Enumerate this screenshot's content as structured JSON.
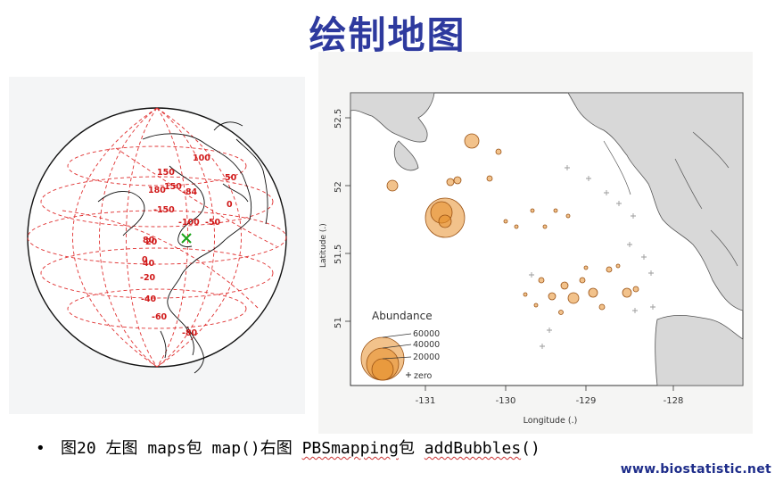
{
  "slide": {
    "title": "绘制地图"
  },
  "left_map": {
    "lat_labels": [
      "80",
      "60",
      "40",
      "20",
      "0",
      "-20",
      "-40",
      "-60",
      "-80"
    ],
    "lon_labels": [
      "150",
      "180",
      "-150",
      "150",
      "-100",
      "-84",
      "100",
      "50",
      "0",
      "-50"
    ],
    "grid_color": "#e03030",
    "marker": "x"
  },
  "right_map": {
    "y_label": "Latitude (.)",
    "x_label": "Longitude (.)",
    "y_ticks": [
      "52.5",
      "52",
      "51.5",
      "51"
    ],
    "x_ticks": [
      "-131",
      "-130",
      "-129",
      "-128"
    ],
    "legend": {
      "title": "Abundance",
      "entries": [
        "60000",
        "40000",
        "20000"
      ],
      "zero_label": "zero"
    },
    "bubble_color": "#e8902c",
    "land_color": "#d8d8d8"
  },
  "caption": {
    "bullet": "•",
    "part1": "图20 左图 maps包  map()右图 ",
    "pkg": "PBSmapping",
    "part2": "包 ",
    "func": "addBubbles",
    "part3": "()"
  },
  "watermark": "www.biostatistic.net"
}
